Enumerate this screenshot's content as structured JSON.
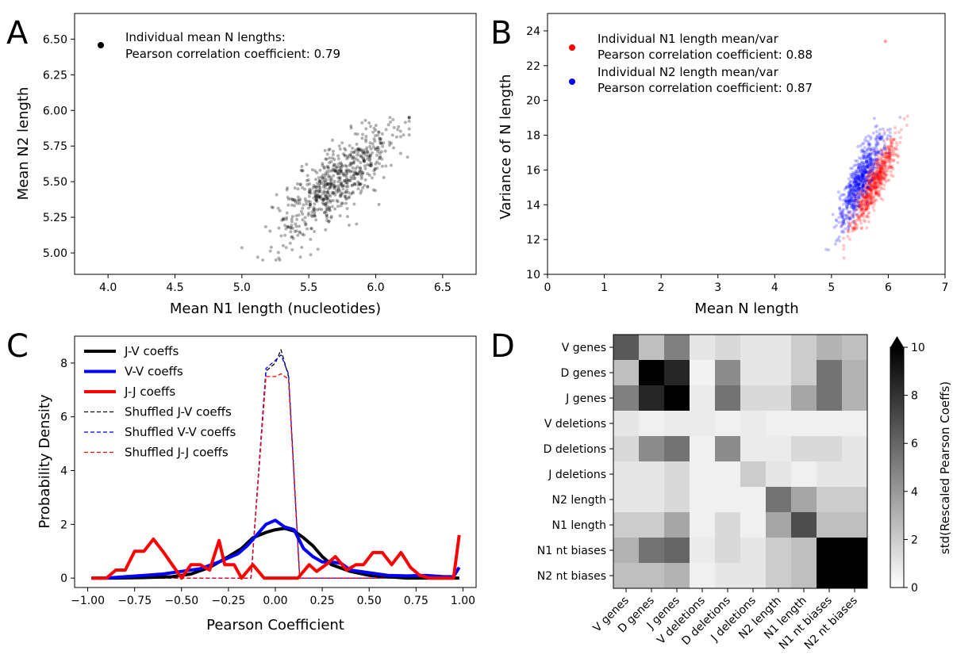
{
  "panels": {
    "A": {
      "label": "A",
      "xlabel": "Mean N1 length (nucleotides)",
      "ylabel": "Mean N2 length",
      "legend": [
        "Individual mean N lengths:",
        "Pearson correlation coefficient: 0.79"
      ]
    },
    "B": {
      "label": "B",
      "xlabel": "Mean N length",
      "ylabel": "Variance of N length",
      "legend1": [
        "Individual N1 length mean/var",
        "Pearson correlation coefficient: 0.88"
      ],
      "legend2": [
        "Individual N2 length mean/var",
        "Pearson correlation coefficient: 0.87"
      ]
    },
    "C": {
      "label": "C",
      "xlabel": "Pearson Coefficient",
      "ylabel": "Probability Density",
      "legend": [
        "J-V coeffs",
        "V-V coeffs",
        "J-J coeffs",
        "Shuffled J-V coeffs",
        "Shuffled V-V coeffs",
        "Shuffled J-J coeffs"
      ]
    },
    "D": {
      "label": "D",
      "colorbar_label": "std(Rescaled Pearson Coeffs)"
    }
  },
  "chart_data": [
    {
      "panel": "A",
      "type": "scatter",
      "xlabel": "Mean N1 length (nucleotides)",
      "ylabel": "Mean N2 length",
      "xlim": [
        3.75,
        6.75
      ],
      "ylim": [
        4.85,
        6.68
      ],
      "xticks": [
        "4.0",
        "4.5",
        "5.0",
        "5.5",
        "6.0",
        "6.5"
      ],
      "yticks": [
        "5.00",
        "5.25",
        "5.50",
        "5.75",
        "6.00",
        "6.25",
        "6.50"
      ],
      "series": [
        {
          "name": "Individual mean N lengths: Pearson correlation coefficient: 0.79",
          "color": "#000000",
          "center": [
            5.7,
            5.5
          ],
          "sd": [
            0.22,
            0.2
          ],
          "r": 0.79,
          "n": 650,
          "x_range": [
            5.0,
            6.25
          ],
          "y_range": [
            4.95,
            5.95
          ]
        }
      ]
    },
    {
      "panel": "B",
      "type": "scatter",
      "xlabel": "Mean N length",
      "ylabel": "Variance of N length",
      "xlim": [
        0,
        7
      ],
      "ylim": [
        10,
        25
      ],
      "xticks": [
        "0",
        "1",
        "2",
        "3",
        "4",
        "5",
        "6",
        "7"
      ],
      "yticks": [
        "10",
        "12",
        "14",
        "16",
        "18",
        "20",
        "22",
        "24"
      ],
      "series": [
        {
          "name": "Individual N1 length mean/var Pearson correlation coefficient: 0.88",
          "color": "#ff0000",
          "center": [
            5.75,
            15.2
          ],
          "sd": [
            0.2,
            1.3
          ],
          "r": 0.88,
          "n": 650
        },
        {
          "name": "Individual N2 length mean/var Pearson correlation coefficient: 0.87",
          "color": "#0000ff",
          "center": [
            5.5,
            15.4
          ],
          "sd": [
            0.2,
            1.3
          ],
          "r": 0.87,
          "n": 650
        }
      ],
      "outliers": [
        {
          "x": 5.95,
          "y": 23.4,
          "color": "#ff0000"
        }
      ]
    },
    {
      "panel": "C",
      "type": "line",
      "xlabel": "Pearson Coefficient",
      "ylabel": "Probability Density",
      "xlim": [
        -1.07,
        1.07
      ],
      "ylim": [
        -0.35,
        9.0
      ],
      "xticks": [
        "−1.00",
        "−0.75",
        "−0.50",
        "−0.25",
        "0.00",
        "0.25",
        "0.50",
        "0.75",
        "1.00"
      ],
      "yticks": [
        "0",
        "2",
        "4",
        "6",
        "8"
      ],
      "series": [
        {
          "name": "J-V coeffs",
          "color": "#000000",
          "style": "solid",
          "x": [
            -0.98,
            -0.85,
            -0.7,
            -0.55,
            -0.45,
            -0.35,
            -0.25,
            -0.18,
            -0.12,
            -0.05,
            0.0,
            0.05,
            0.1,
            0.15,
            0.2,
            0.25,
            0.3,
            0.4,
            0.5,
            0.6,
            0.7,
            0.8,
            0.9,
            0.98
          ],
          "y": [
            0,
            0,
            0.02,
            0.05,
            0.15,
            0.4,
            0.8,
            1.1,
            1.5,
            1.7,
            1.8,
            1.85,
            1.75,
            1.5,
            1.2,
            0.8,
            0.5,
            0.25,
            0.1,
            0.05,
            0,
            0,
            0,
            0
          ]
        },
        {
          "name": "V-V coeffs",
          "color": "#0000ff",
          "style": "solid",
          "x": [
            -0.98,
            -0.9,
            -0.8,
            -0.7,
            -0.6,
            -0.5,
            -0.4,
            -0.3,
            -0.25,
            -0.2,
            -0.15,
            -0.1,
            -0.05,
            0.0,
            0.05,
            0.1,
            0.15,
            0.2,
            0.25,
            0.3,
            0.35,
            0.4,
            0.5,
            0.6,
            0.7,
            0.8,
            0.9,
            0.95,
            0.98
          ],
          "y": [
            0,
            0,
            0.05,
            0.1,
            0.15,
            0.25,
            0.35,
            0.6,
            0.75,
            0.9,
            1.2,
            1.6,
            2.0,
            2.15,
            1.9,
            1.8,
            1.1,
            0.8,
            0.6,
            0.6,
            0.55,
            0.3,
            0.2,
            0.1,
            0.08,
            0.1,
            0.05,
            0.05,
            0.4
          ]
        },
        {
          "name": "J-J coeffs",
          "color": "#ff0000",
          "style": "solid",
          "x": [
            -0.98,
            -0.9,
            -0.85,
            -0.8,
            -0.75,
            -0.7,
            -0.65,
            -0.6,
            -0.55,
            -0.5,
            -0.45,
            -0.4,
            -0.35,
            -0.3,
            -0.27,
            -0.22,
            -0.18,
            -0.12,
            -0.06,
            0.0,
            0.06,
            0.12,
            0.18,
            0.22,
            0.27,
            0.32,
            0.38,
            0.43,
            0.47,
            0.52,
            0.57,
            0.62,
            0.67,
            0.72,
            0.77,
            0.82,
            0.87,
            0.92,
            0.95,
            0.98
          ],
          "y": [
            0,
            0,
            0.3,
            0.3,
            1.0,
            1.0,
            1.45,
            1.0,
            0.5,
            0,
            0.5,
            0.5,
            0.3,
            1.4,
            0.5,
            0.5,
            0,
            0.5,
            0,
            0,
            0,
            0,
            0.5,
            0.25,
            0.5,
            0.8,
            0.3,
            0.5,
            0.5,
            0.95,
            0.95,
            0.5,
            0.95,
            0.4,
            0.1,
            0,
            0,
            0,
            0,
            1.6
          ]
        },
        {
          "name": "Shuffled J-V coeffs",
          "color": "#000000",
          "style": "dashed",
          "x": [
            -0.98,
            -0.6,
            -0.2,
            -0.13,
            -0.05,
            0.0,
            0.03,
            0.07,
            0.13,
            0.2,
            0.6,
            0.98
          ],
          "y": [
            0,
            0,
            0,
            0,
            7.7,
            8.0,
            8.5,
            7.5,
            0,
            0,
            0,
            0
          ]
        },
        {
          "name": "Shuffled V-V coeffs",
          "color": "#0000ff",
          "style": "dashed",
          "x": [
            -0.98,
            -0.6,
            -0.2,
            -0.13,
            -0.05,
            0.0,
            0.03,
            0.07,
            0.13,
            0.2,
            0.6,
            0.98
          ],
          "y": [
            0,
            0,
            0,
            0,
            7.8,
            8.1,
            8.3,
            7.6,
            0,
            0,
            0,
            0
          ]
        },
        {
          "name": "Shuffled J-J coeffs",
          "color": "#ff0000",
          "style": "dashed",
          "x": [
            -0.98,
            -0.6,
            -0.2,
            -0.13,
            -0.05,
            0.0,
            0.03,
            0.07,
            0.13,
            0.2,
            0.6,
            0.98
          ],
          "y": [
            0,
            0,
            0,
            0,
            7.5,
            7.5,
            7.6,
            7.4,
            0,
            0,
            0,
            0
          ]
        }
      ]
    },
    {
      "panel": "D",
      "type": "heatmap",
      "rows": [
        "V genes",
        "D genes",
        "J genes",
        "V deletions",
        "D deletions",
        "J deletions",
        "N2 length",
        "N1 length",
        "N1 nt biases",
        "N2 nt biases"
      ],
      "cols": [
        "V genes",
        "D genes",
        "J genes",
        "V deletions",
        "D deletions",
        "J deletions",
        "N2 length",
        "N1 length",
        "N1 nt biases",
        "N2 nt biases"
      ],
      "colorbar": {
        "label": "std(Rescaled Pearson Coeffs)",
        "min": 0,
        "max": 10,
        "ticks": [
          "0",
          "2",
          "4",
          "6",
          "8",
          "10"
        ],
        "extend": "max"
      },
      "values": [
        [
          6.5,
          2.5,
          5.0,
          1.0,
          1.5,
          1.0,
          1.0,
          2.0,
          3.0,
          2.5
        ],
        [
          2.5,
          10,
          8.5,
          0.5,
          4.5,
          1.0,
          1.0,
          2.0,
          5.5,
          3.0
        ],
        [
          5.0,
          8.5,
          10,
          0.8,
          5.5,
          1.5,
          1.5,
          3.5,
          5.5,
          3.0
        ],
        [
          1.0,
          0.6,
          0.8,
          0.8,
          0.6,
          0.8,
          0.6,
          0.6,
          0.6,
          0.6
        ],
        [
          1.5,
          4.5,
          5.5,
          0.6,
          4.5,
          0.8,
          0.8,
          1.5,
          1.5,
          1.0
        ],
        [
          1.0,
          1.0,
          1.5,
          0.6,
          0.6,
          2.0,
          1.0,
          0.6,
          1.0,
          1.0
        ],
        [
          1.0,
          1.0,
          1.5,
          0.6,
          0.6,
          0.6,
          5.5,
          3.5,
          2.0,
          2.0
        ],
        [
          2.0,
          2.0,
          3.5,
          0.6,
          1.5,
          0.6,
          3.5,
          7.0,
          2.5,
          2.5
        ],
        [
          3.0,
          5.5,
          6.0,
          0.8,
          1.5,
          1.0,
          2.0,
          2.5,
          10,
          10
        ],
        [
          2.5,
          2.5,
          3.0,
          0.6,
          1.0,
          1.0,
          2.0,
          2.5,
          10,
          10
        ]
      ]
    }
  ]
}
